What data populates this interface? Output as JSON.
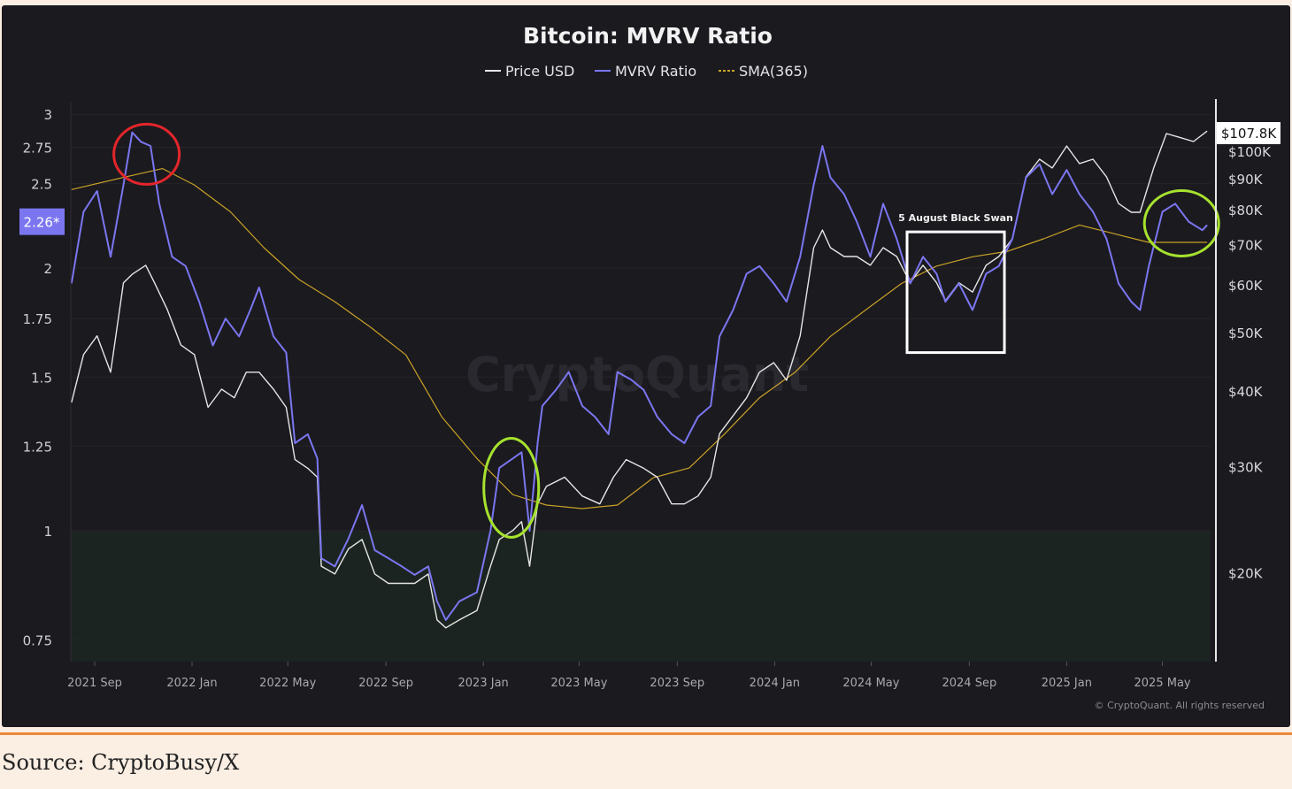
{
  "source_caption": "Source: CryptoBusy/X",
  "copyright": "© CryptoQuant. All rights reserved",
  "watermark": "CryptoQuant",
  "chart_data": {
    "type": "line",
    "title": "Bitcoin: MVRV Ratio",
    "legend": {
      "placement": "top-center",
      "entries": [
        "Price USD",
        "MVRV Ratio",
        "SMA(365)"
      ]
    },
    "grid": true,
    "x_ticks": [
      "2021 Sep",
      "2022 Jan",
      "2022 May",
      "2022 Sep",
      "2023 Jan",
      "2023 May",
      "2023 Sep",
      "2024 Jan",
      "2024 May",
      "2024 Sep",
      "2025 Jan",
      "2025 May"
    ],
    "x_tick_dates": [
      "2021-09-01",
      "2022-01-01",
      "2022-05-01",
      "2022-09-01",
      "2023-01-01",
      "2023-05-01",
      "2023-09-01",
      "2024-01-01",
      "2024-05-01",
      "2024-09-01",
      "2025-01-01",
      "2025-05-01"
    ],
    "y_left": {
      "scale": "log",
      "range": [
        0.7,
        3.1
      ],
      "ticks": [
        3,
        2.75,
        2.5,
        2,
        1.75,
        1.5,
        1.25,
        1,
        0.75
      ],
      "tick_labels": [
        "3",
        "2.75",
        "2.5",
        "2",
        "1.75",
        "1.5",
        "1.25",
        "1",
        "0.75"
      ],
      "current_label": "2.26*",
      "current_value": 2.26
    },
    "y_right": {
      "scale": "log",
      "range": [
        16000,
        125000
      ],
      "ticks": [
        100000,
        90000,
        80000,
        70000,
        60000,
        50000,
        40000,
        30000,
        20000
      ],
      "tick_labels": [
        "$100K",
        "$90K",
        "$80K",
        "$70K",
        "$60K",
        "$50K",
        "$40K",
        "$30K",
        "$20K"
      ],
      "current_label": "$107.8K",
      "current_value": 107800
    },
    "threshold": {
      "value": 1,
      "shaded_below": true
    },
    "colors": {
      "price": "#e6e6e6",
      "mvrv": "#7b76f0",
      "sma": "#c9a227",
      "background": "#1b1a1f",
      "shade": "#1b2420",
      "threshold": "#4c9a4c",
      "highlight_red": "#e3262b",
      "highlight_green": "#a6e22e",
      "box": "#ffffff"
    },
    "annotations": [
      {
        "type": "circle",
        "color": "red",
        "date": "2021-11-05",
        "mvrv": 2.7
      },
      {
        "type": "circle",
        "color": "green",
        "date": "2023-02-05",
        "mvrv": 1.12
      },
      {
        "type": "circle",
        "color": "green",
        "date": "2025-05-25",
        "mvrv": 2.25
      },
      {
        "type": "box",
        "label": "5 August Black Swan",
        "date_from": "2024-06-15",
        "date_to": "2024-10-15",
        "mvrv_range": [
          1.6,
          2.2
        ]
      }
    ],
    "series": [
      {
        "name": "MVRV Ratio",
        "axis": "left",
        "points": [
          [
            "2021-08-03",
            1.92
          ],
          [
            "2021-08-18",
            2.32
          ],
          [
            "2021-09-04",
            2.45
          ],
          [
            "2021-09-21",
            2.06
          ],
          [
            "2021-10-07",
            2.49
          ],
          [
            "2021-10-18",
            2.86
          ],
          [
            "2021-10-29",
            2.79
          ],
          [
            "2021-11-10",
            2.76
          ],
          [
            "2021-11-21",
            2.37
          ],
          [
            "2021-12-07",
            2.06
          ],
          [
            "2021-12-24",
            2.01
          ],
          [
            "2022-01-10",
            1.83
          ],
          [
            "2022-01-27",
            1.63
          ],
          [
            "2022-02-12",
            1.75
          ],
          [
            "2022-03-01",
            1.67
          ],
          [
            "2022-03-15",
            1.79
          ],
          [
            "2022-03-26",
            1.9
          ],
          [
            "2022-04-13",
            1.67
          ],
          [
            "2022-04-29",
            1.6
          ],
          [
            "2022-05-10",
            1.26
          ],
          [
            "2022-05-26",
            1.29
          ],
          [
            "2022-06-07",
            1.21
          ],
          [
            "2022-06-12",
            0.93
          ],
          [
            "2022-06-29",
            0.91
          ],
          [
            "2022-07-16",
            0.98
          ],
          [
            "2022-08-02",
            1.07
          ],
          [
            "2022-08-18",
            0.95
          ],
          [
            "2022-09-04",
            0.93
          ],
          [
            "2022-09-21",
            0.91
          ],
          [
            "2022-10-07",
            0.89
          ],
          [
            "2022-10-24",
            0.91
          ],
          [
            "2022-11-04",
            0.83
          ],
          [
            "2022-11-15",
            0.79
          ],
          [
            "2022-12-02",
            0.83
          ],
          [
            "2022-12-24",
            0.85
          ],
          [
            "2023-01-10",
            1.0
          ],
          [
            "2023-01-21",
            1.18
          ],
          [
            "2023-02-07",
            1.21
          ],
          [
            "2023-02-18",
            1.23
          ],
          [
            "2023-02-28",
            1.0
          ],
          [
            "2023-03-10",
            1.26
          ],
          [
            "2023-03-16",
            1.39
          ],
          [
            "2023-04-02",
            1.45
          ],
          [
            "2023-04-18",
            1.52
          ],
          [
            "2023-05-05",
            1.39
          ],
          [
            "2023-05-21",
            1.35
          ],
          [
            "2023-06-07",
            1.29
          ],
          [
            "2023-06-18",
            1.52
          ],
          [
            "2023-07-05",
            1.49
          ],
          [
            "2023-07-21",
            1.45
          ],
          [
            "2023-08-07",
            1.35
          ],
          [
            "2023-08-25",
            1.29
          ],
          [
            "2023-09-10",
            1.26
          ],
          [
            "2023-09-27",
            1.35
          ],
          [
            "2023-10-13",
            1.39
          ],
          [
            "2023-10-24",
            1.67
          ],
          [
            "2023-11-10",
            1.79
          ],
          [
            "2023-11-27",
            1.97
          ],
          [
            "2023-12-13",
            2.01
          ],
          [
            "2023-12-31",
            1.92
          ],
          [
            "2024-01-16",
            1.83
          ],
          [
            "2024-02-02",
            2.06
          ],
          [
            "2024-02-19",
            2.49
          ],
          [
            "2024-03-01",
            2.76
          ],
          [
            "2024-03-11",
            2.54
          ],
          [
            "2024-03-28",
            2.43
          ],
          [
            "2024-04-13",
            2.26
          ],
          [
            "2024-04-30",
            2.06
          ],
          [
            "2024-05-16",
            2.37
          ],
          [
            "2024-06-02",
            2.16
          ],
          [
            "2024-06-19",
            1.92
          ],
          [
            "2024-07-05",
            2.06
          ],
          [
            "2024-07-22",
            1.97
          ],
          [
            "2024-08-02",
            1.83
          ],
          [
            "2024-08-19",
            1.92
          ],
          [
            "2024-09-05",
            1.79
          ],
          [
            "2024-09-22",
            1.97
          ],
          [
            "2024-10-08",
            2.01
          ],
          [
            "2024-10-25",
            2.16
          ],
          [
            "2024-11-11",
            2.54
          ],
          [
            "2024-11-28",
            2.63
          ],
          [
            "2024-12-14",
            2.43
          ],
          [
            "2025-01-01",
            2.59
          ],
          [
            "2025-01-17",
            2.43
          ],
          [
            "2025-02-03",
            2.32
          ],
          [
            "2025-02-20",
            2.16
          ],
          [
            "2025-03-07",
            1.92
          ],
          [
            "2025-03-23",
            1.83
          ],
          [
            "2025-04-03",
            1.79
          ],
          [
            "2025-04-14",
            2.01
          ],
          [
            "2025-05-01",
            2.32
          ],
          [
            "2025-05-17",
            2.37
          ],
          [
            "2025-06-03",
            2.26
          ],
          [
            "2025-06-20",
            2.21
          ],
          [
            "2025-06-26",
            2.24
          ]
        ]
      },
      {
        "name": "Price USD",
        "axis": "right",
        "points": [
          [
            "2021-08-03",
            38300
          ],
          [
            "2021-08-18",
            46000
          ],
          [
            "2021-09-04",
            49400
          ],
          [
            "2021-09-21",
            43000
          ],
          [
            "2021-10-07",
            60500
          ],
          [
            "2021-10-18",
            62500
          ],
          [
            "2021-11-04",
            64700
          ],
          [
            "2021-11-15",
            60500
          ],
          [
            "2021-12-01",
            54600
          ],
          [
            "2021-12-18",
            47700
          ],
          [
            "2022-01-04",
            46000
          ],
          [
            "2022-01-21",
            37600
          ],
          [
            "2022-02-07",
            40300
          ],
          [
            "2022-02-23",
            39000
          ],
          [
            "2022-03-10",
            43000
          ],
          [
            "2022-03-26",
            43000
          ],
          [
            "2022-04-13",
            40300
          ],
          [
            "2022-04-29",
            37600
          ],
          [
            "2022-05-10",
            30800
          ],
          [
            "2022-05-26",
            29800
          ],
          [
            "2022-06-07",
            28800
          ],
          [
            "2022-06-12",
            20500
          ],
          [
            "2022-06-29",
            19900
          ],
          [
            "2022-07-16",
            21900
          ],
          [
            "2022-08-02",
            22700
          ],
          [
            "2022-08-18",
            19900
          ],
          [
            "2022-09-04",
            19200
          ],
          [
            "2022-09-21",
            19200
          ],
          [
            "2022-10-07",
            19200
          ],
          [
            "2022-10-24",
            19900
          ],
          [
            "2022-11-04",
            16700
          ],
          [
            "2022-11-15",
            16200
          ],
          [
            "2022-12-02",
            16700
          ],
          [
            "2022-12-24",
            17300
          ],
          [
            "2023-01-10",
            20500
          ],
          [
            "2023-01-21",
            22700
          ],
          [
            "2023-02-07",
            23500
          ],
          [
            "2023-02-18",
            24300
          ],
          [
            "2023-02-28",
            20500
          ],
          [
            "2023-03-10",
            26000
          ],
          [
            "2023-03-21",
            27800
          ],
          [
            "2023-04-13",
            28800
          ],
          [
            "2023-05-05",
            26800
          ],
          [
            "2023-05-27",
            26000
          ],
          [
            "2023-06-13",
            28800
          ],
          [
            "2023-06-29",
            30800
          ],
          [
            "2023-07-21",
            29800
          ],
          [
            "2023-08-07",
            28800
          ],
          [
            "2023-08-25",
            26000
          ],
          [
            "2023-09-10",
            26000
          ],
          [
            "2023-09-27",
            26800
          ],
          [
            "2023-10-13",
            28800
          ],
          [
            "2023-10-24",
            34000
          ],
          [
            "2023-11-10",
            36400
          ],
          [
            "2023-11-27",
            39000
          ],
          [
            "2023-12-13",
            43000
          ],
          [
            "2023-12-31",
            44600
          ],
          [
            "2024-01-16",
            41700
          ],
          [
            "2024-02-02",
            49400
          ],
          [
            "2024-02-19",
            69200
          ],
          [
            "2024-03-01",
            74000
          ],
          [
            "2024-03-11",
            69200
          ],
          [
            "2024-03-28",
            66900
          ],
          [
            "2024-04-13",
            66900
          ],
          [
            "2024-04-30",
            64700
          ],
          [
            "2024-05-16",
            69200
          ],
          [
            "2024-06-02",
            66900
          ],
          [
            "2024-06-19",
            60500
          ],
          [
            "2024-07-05",
            64700
          ],
          [
            "2024-07-22",
            60500
          ],
          [
            "2024-08-02",
            56500
          ],
          [
            "2024-08-19",
            60500
          ],
          [
            "2024-09-05",
            58400
          ],
          [
            "2024-09-22",
            64700
          ],
          [
            "2024-10-08",
            66900
          ],
          [
            "2024-10-25",
            71600
          ],
          [
            "2024-11-11",
            90700
          ],
          [
            "2024-11-28",
            97000
          ],
          [
            "2024-12-14",
            93800
          ],
          [
            "2025-01-01",
            102000
          ],
          [
            "2025-01-17",
            95400
          ],
          [
            "2025-02-03",
            97000
          ],
          [
            "2025-02-20",
            90700
          ],
          [
            "2025-03-07",
            81900
          ],
          [
            "2025-03-23",
            79200
          ],
          [
            "2025-04-03",
            79200
          ],
          [
            "2025-04-20",
            93800
          ],
          [
            "2025-05-06",
            107000
          ],
          [
            "2025-05-22",
            105500
          ],
          [
            "2025-06-09",
            103800
          ],
          [
            "2025-06-26",
            108000
          ]
        ]
      },
      {
        "name": "SMA(365)",
        "axis": "left",
        "points": [
          [
            "2021-08-03",
            2.46
          ],
          [
            "2021-10-07",
            2.54
          ],
          [
            "2021-11-25",
            2.6
          ],
          [
            "2022-01-04",
            2.49
          ],
          [
            "2022-02-18",
            2.32
          ],
          [
            "2022-04-01",
            2.11
          ],
          [
            "2022-05-15",
            1.94
          ],
          [
            "2022-06-29",
            1.83
          ],
          [
            "2022-08-13",
            1.71
          ],
          [
            "2022-09-26",
            1.59
          ],
          [
            "2022-11-10",
            1.35
          ],
          [
            "2022-12-24",
            1.21
          ],
          [
            "2023-02-07",
            1.1
          ],
          [
            "2023-03-21",
            1.07
          ],
          [
            "2023-05-05",
            1.06
          ],
          [
            "2023-06-18",
            1.07
          ],
          [
            "2023-08-02",
            1.15
          ],
          [
            "2023-09-16",
            1.18
          ],
          [
            "2023-10-30",
            1.29
          ],
          [
            "2023-12-13",
            1.42
          ],
          [
            "2024-01-27",
            1.52
          ],
          [
            "2024-03-11",
            1.67
          ],
          [
            "2024-04-24",
            1.79
          ],
          [
            "2024-06-08",
            1.92
          ],
          [
            "2024-07-22",
            2.01
          ],
          [
            "2024-09-05",
            2.06
          ],
          [
            "2024-10-19",
            2.09
          ],
          [
            "2024-12-03",
            2.16
          ],
          [
            "2025-01-17",
            2.24
          ],
          [
            "2025-03-01",
            2.19
          ],
          [
            "2025-04-14",
            2.14
          ],
          [
            "2025-05-28",
            2.14
          ],
          [
            "2025-06-26",
            2.14
          ]
        ]
      }
    ]
  }
}
